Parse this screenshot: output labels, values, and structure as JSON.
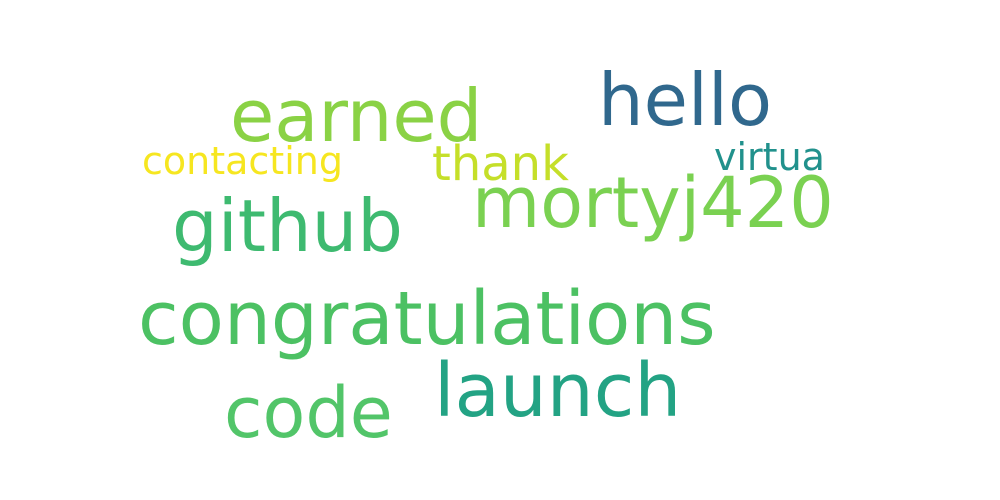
{
  "words": [
    {
      "text": "congratulations",
      "color": "#4cc163"
    },
    {
      "text": "launch",
      "color": "#23a384"
    },
    {
      "text": "earned",
      "color": "#8ad245"
    },
    {
      "text": "hello",
      "color": "#30688d"
    },
    {
      "text": "github",
      "color": "#3eba70"
    },
    {
      "text": "mortyj420",
      "color": "#7ad151"
    },
    {
      "text": "code",
      "color": "#52c569"
    },
    {
      "text": "thank",
      "color": "#c5df29"
    },
    {
      "text": "contacting",
      "color": "#f6e620"
    },
    {
      "text": "virtua",
      "color": "#21918c"
    }
  ]
}
